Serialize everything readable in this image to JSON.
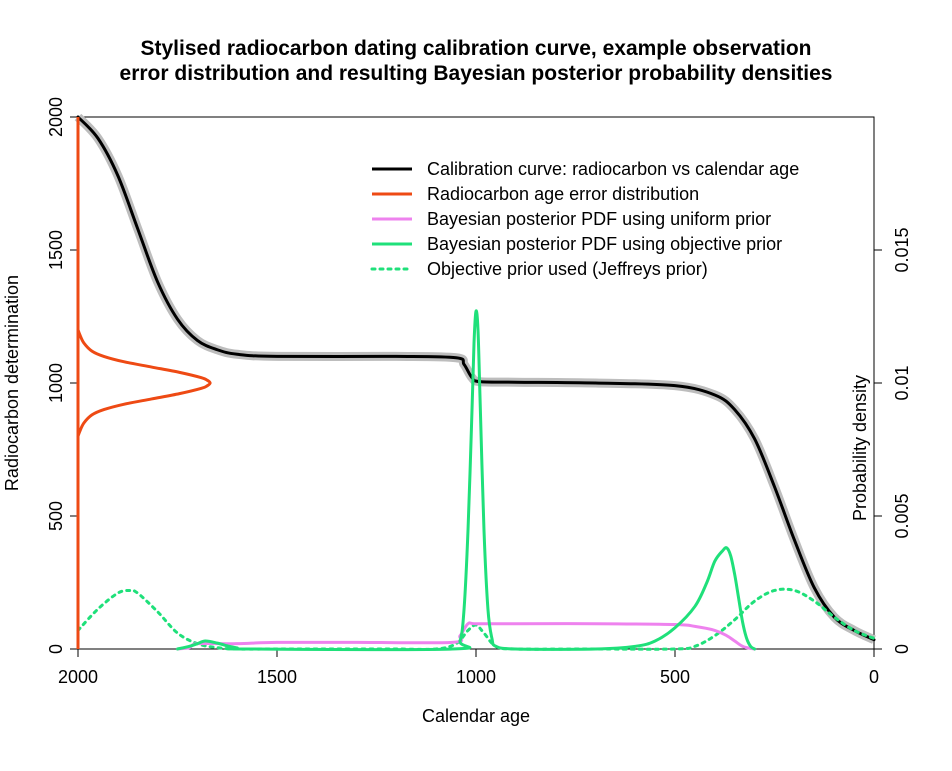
{
  "chart_data": {
    "type": "line",
    "title_lines": [
      "Stylised radiocarbon dating calibration curve, example observation",
      "error distribution and resulting Bayesian posterior probability densities"
    ],
    "xlabel": "Calendar age",
    "ylabel_left": "Radiocarbon determination",
    "ylabel_right": "Probability density",
    "xlim": [
      2000,
      0
    ],
    "ylim_left": [
      0,
      2000
    ],
    "ylim_right": [
      0,
      0.02
    ],
    "x_ticks": [
      2000,
      1500,
      1000,
      500,
      0
    ],
    "x_tick_labels": [
      "2000",
      "1500",
      "1000",
      "500",
      "0"
    ],
    "y_left_ticks": [
      0,
      500,
      1000,
      1500,
      2000
    ],
    "y_left_tick_labels": [
      "0",
      "500",
      "1000",
      "1500",
      "2000"
    ],
    "y_right_ticks": [
      0,
      0.005,
      0.01,
      0.015
    ],
    "y_right_tick_labels": [
      "0",
      "0.005",
      "0.01",
      "0.015"
    ],
    "legend_position": "top-right",
    "colors": {
      "calibration": "#000000",
      "calibration_band": "#bdbdbd",
      "error_dist": "#ee4a14",
      "uniform_posterior": "#ee82ee",
      "objective_posterior": "#1fe07a",
      "jeffreys_prior": "#1fe07a"
    },
    "series": [
      {
        "name": "Calibration curve: radiocarbon vs calendar age",
        "axis": "left",
        "style": "solid",
        "x": [
          2000,
          1950,
          1900,
          1850,
          1800,
          1750,
          1700,
          1650,
          1600,
          1500,
          1200,
          1050,
          1030,
          1010,
          990,
          900,
          700,
          500,
          400,
          350,
          300,
          250,
          200,
          150,
          100,
          50,
          0
        ],
        "y": [
          2000,
          1920,
          1780,
          1580,
          1380,
          1240,
          1160,
          1125,
          1108,
          1100,
          1100,
          1095,
          1070,
          1020,
          1005,
          1003,
          1000,
          990,
          955,
          900,
          790,
          610,
          410,
          230,
          120,
          70,
          35
        ]
      },
      {
        "name": "Radiocarbon age error distribution",
        "axis": "left",
        "style": "solid",
        "orientation": "vertical",
        "y": [
          800,
          820,
          850,
          880,
          900,
          920,
          940,
          960,
          980,
          990,
          1000,
          1010,
          1020,
          1040,
          1060,
          1080,
          1100,
          1120,
          1150,
          1180,
          1200
        ],
        "x": [
          2000,
          1995,
          1985,
          1965,
          1935,
          1885,
          1815,
          1745,
          1690,
          1675,
          1668,
          1675,
          1690,
          1745,
          1815,
          1885,
          1935,
          1965,
          1985,
          1995,
          2000
        ]
      },
      {
        "name": "Bayesian posterior PDF using uniform prior",
        "axis": "right",
        "style": "solid",
        "x": [
          1750,
          1720,
          1700,
          1600,
          1500,
          1300,
          1060,
          1040,
          1020,
          1000,
          900,
          700,
          500,
          450,
          400,
          370,
          350,
          330,
          310,
          300
        ],
        "y": [
          0,
          5e-05,
          0.0002,
          0.0002,
          0.00025,
          0.00025,
          0.00025,
          0.0005,
          0.00095,
          0.00095,
          0.00095,
          0.00095,
          0.00092,
          0.00085,
          0.0007,
          0.0005,
          0.0003,
          0.0001,
          2e-05,
          0
        ]
      },
      {
        "name": "Bayesian posterior PDF using objective prior",
        "axis": "right",
        "style": "solid",
        "x": [
          1750,
          1720,
          1700,
          1680,
          1650,
          1620,
          1600,
          1580,
          1060,
          1040,
          1030,
          1020,
          1010,
          1005,
          1000,
          995,
          990,
          980,
          970,
          960,
          950,
          900,
          700,
          600,
          550,
          500,
          450,
          420,
          400,
          380,
          370,
          360,
          350,
          340,
          330,
          320,
          310,
          300
        ],
        "y": [
          0,
          0.0001,
          0.0002,
          0.0003,
          0.00022,
          0.0001,
          4e-05,
          0,
          0,
          0.0003,
          0.0015,
          0.0045,
          0.009,
          0.0115,
          0.0127,
          0.012,
          0.0095,
          0.0045,
          0.0015,
          0.0004,
          0.0001,
          0,
          0,
          0.0001,
          0.0003,
          0.0008,
          0.0016,
          0.0025,
          0.0033,
          0.0037,
          0.0038,
          0.0035,
          0.0028,
          0.0019,
          0.001,
          0.0004,
          0.0001,
          0
        ]
      },
      {
        "name": "Objective prior used (Jeffreys prior)",
        "axis": "right",
        "style": "dotted",
        "x": [
          2000,
          1950,
          1900,
          1870,
          1850,
          1800,
          1750,
          1700,
          1650,
          1600,
          1500,
          1400,
          1300,
          1200,
          1100,
          1050,
          1020,
          1000,
          980,
          950,
          900,
          700,
          500,
          450,
          400,
          350,
          300,
          250,
          200,
          150,
          100,
          50,
          0
        ],
        "y": [
          0.0007,
          0.0015,
          0.0021,
          0.0022,
          0.0021,
          0.0014,
          0.0006,
          0.0002,
          5e-05,
          0,
          0,
          0,
          0,
          0,
          0,
          0.0002,
          0.0007,
          0.0009,
          0.0006,
          0.0001,
          0,
          0,
          0,
          0.0001,
          0.0005,
          0.0011,
          0.0018,
          0.0022,
          0.0022,
          0.0018,
          0.0012,
          0.0007,
          0.0004
        ]
      }
    ]
  }
}
